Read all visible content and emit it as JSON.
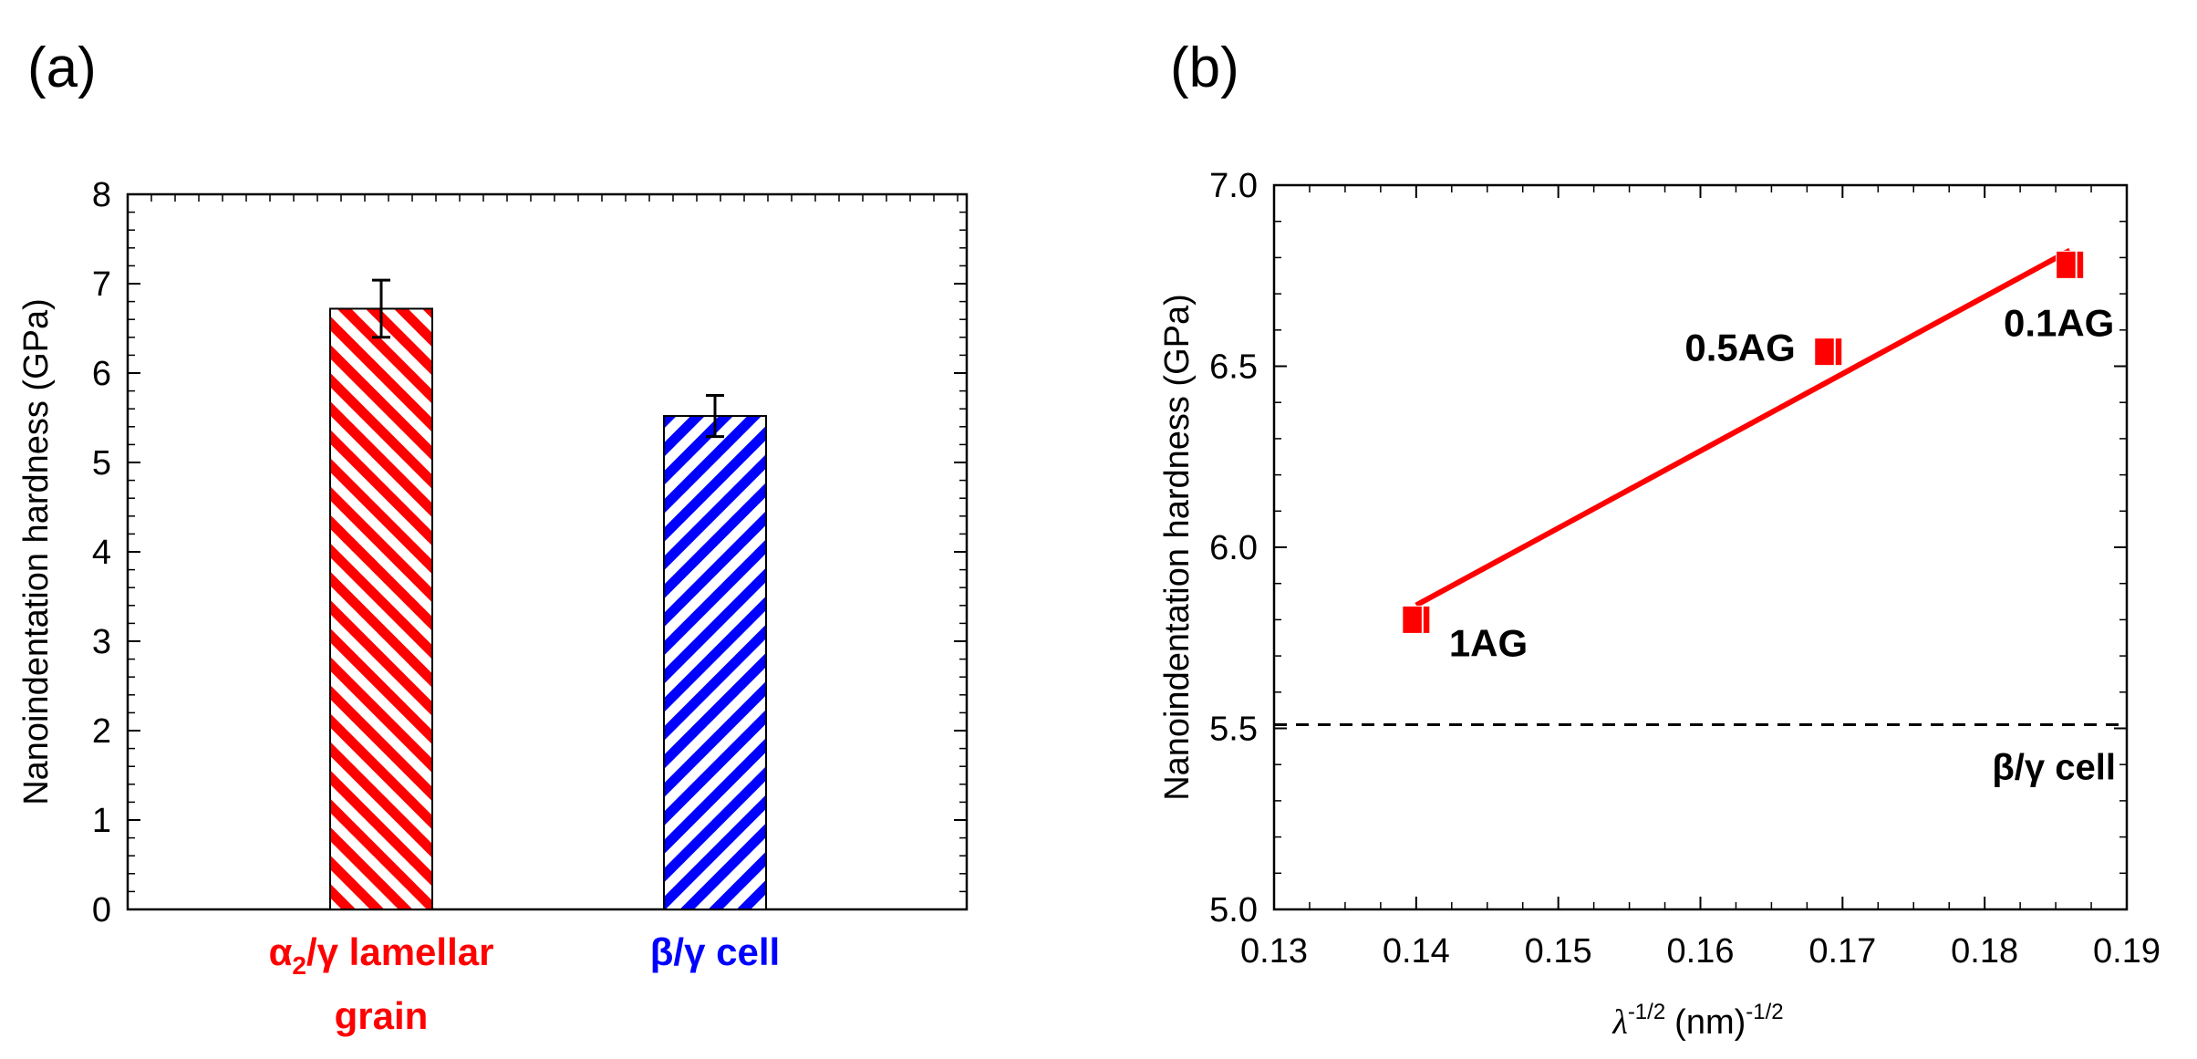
{
  "panel_labels": [
    "(a)",
    "(b)"
  ],
  "colors": {
    "red": "#ff0000",
    "blue": "#0000ff",
    "black": "#000000"
  },
  "chart_data": [
    {
      "type": "bar",
      "panel": "(a)",
      "title": "",
      "xlabel": "",
      "ylabel": "Nanoindentation hardness (GPa)",
      "ylim": [
        0,
        8
      ],
      "yticks": [
        "0",
        "1",
        "2",
        "3",
        "4",
        "5",
        "6",
        "7",
        "8"
      ],
      "categories": [
        {
          "name": "α2/γ lamellar grain",
          "line1_pre": "α",
          "line1_sub": "2",
          "line1_post": "/γ lamellar",
          "line2": "grain",
          "color": "#ff0000"
        },
        {
          "name": "β/γ cell",
          "line1_pre": "β/γ cell",
          "line1_sub": "",
          "line1_post": "",
          "line2": "",
          "color": "#0000ff"
        }
      ],
      "values": [
        6.72,
        5.52
      ],
      "errors": [
        0.32,
        0.23
      ],
      "fill_pattern": "diagonal hatch"
    },
    {
      "type": "scatter",
      "panel": "(b)",
      "title": "",
      "xlabel_symbol": "λ",
      "xlabel_sup1": "-1/2",
      "xlabel_text": "(nm)",
      "xlabel_sup2": "-1/2",
      "ylabel": "Nanoindentation hardness (GPa)",
      "xlim": [
        0.13,
        0.19
      ],
      "ylim": [
        5.0,
        7.0
      ],
      "xticks": [
        "0.13",
        "0.14",
        "0.15",
        "0.16",
        "0.17",
        "0.18",
        "0.19"
      ],
      "yticks": [
        "5.0",
        "5.5",
        "6.0",
        "6.5",
        "7.0"
      ],
      "points": [
        {
          "label": "1AG",
          "x": 0.14,
          "y": 5.8
        },
        {
          "label": "0.5AG",
          "x": 0.169,
          "y": 6.54
        },
        {
          "label": "0.1AG",
          "x": 0.186,
          "y": 6.78
        }
      ],
      "fit_line": {
        "x": [
          0.14,
          0.186
        ],
        "y": [
          5.84,
          6.82
        ],
        "color": "#ff0000"
      },
      "reference_line": {
        "y": 5.51,
        "label": "β/γ cell",
        "style": "dashed"
      }
    }
  ]
}
